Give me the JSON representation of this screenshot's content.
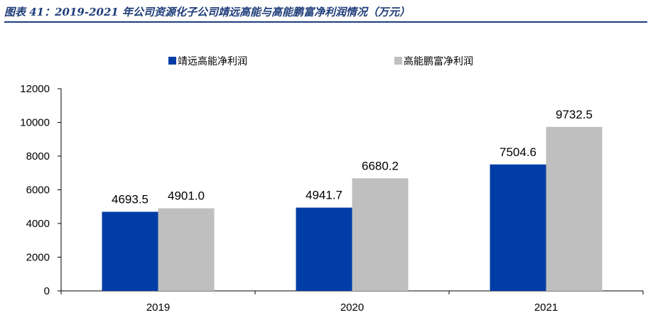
{
  "figure_title": "图表 41：2019-2021 年公司资源化子公司靖远高能与高能鹏富净利润情况（万元）",
  "colors": {
    "series_1": "#003da6",
    "series_2": "#bfbfbf",
    "title": "#1f3d7a"
  },
  "chart_data": {
    "type": "bar",
    "categories": [
      "2019",
      "2020",
      "2021"
    ],
    "series": [
      {
        "name": "靖远高能净利润",
        "values": [
          4693.5,
          4941.7,
          7504.6
        ],
        "labels": [
          "4693.5",
          "4941.7",
          "7504.6"
        ]
      },
      {
        "name": "高能鹏富净利润",
        "values": [
          4901.0,
          6680.2,
          9732.5
        ],
        "labels": [
          "4901.0",
          "6680.2",
          "9732.5"
        ]
      }
    ],
    "ylim": [
      0,
      12000
    ],
    "yticks": [
      0,
      2000,
      4000,
      6000,
      8000,
      10000,
      12000
    ],
    "legend_position": "top-center",
    "grid": false
  }
}
